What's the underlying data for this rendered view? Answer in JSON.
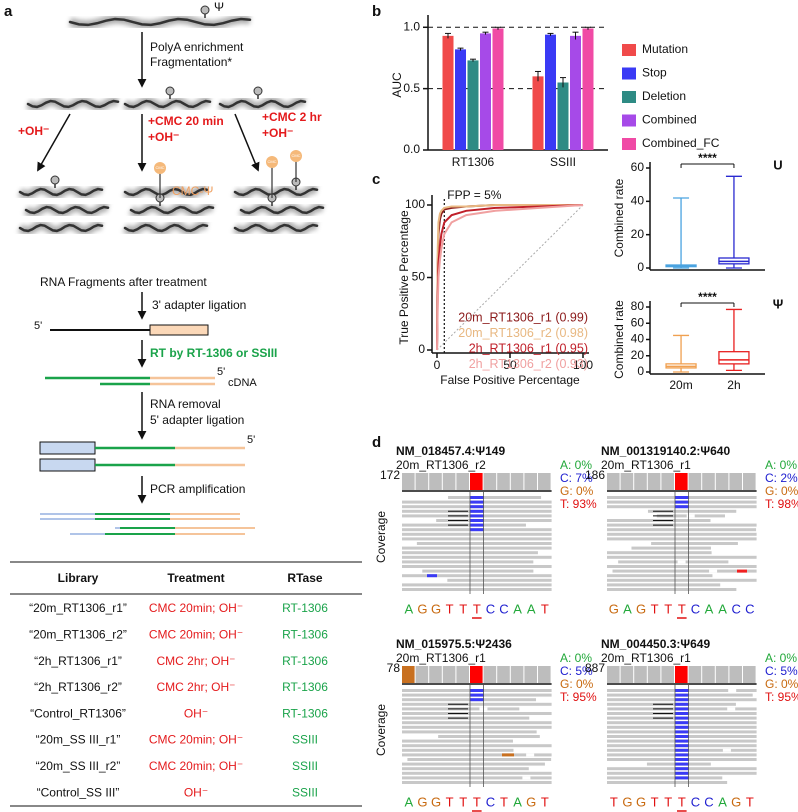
{
  "diagram": {
    "panel_label": "a",
    "psi": "Ψ",
    "step1": "PolyA enrichment",
    "step2": "Fragmentation*",
    "treatments": [
      [
        "+OH⁻"
      ],
      [
        "+CMC 20 min",
        "+OH⁻"
      ],
      [
        "+CMC 2 hr",
        "+OH⁻"
      ]
    ],
    "cmc": "CMC",
    "cmc_psi": "CMC-Ψ",
    "fragments_label": "RNA Fragments after treatment",
    "step3": "3' adapter ligation",
    "five_prime": "5'",
    "step4": "RT by RT-1306 or SSIII",
    "cdna": "cDNA",
    "step5": "RNA removal",
    "step6": "5' adapter ligation",
    "step7": "PCR amplification"
  },
  "table": {
    "header": [
      "Library",
      "Treatment",
      "RTase"
    ],
    "rows": [
      [
        "“20m_RT1306_r1”",
        "CMC 20min; OH⁻",
        "RT-1306"
      ],
      [
        "“20m_RT1306_r2”",
        "CMC 20min; OH⁻",
        "RT-1306"
      ],
      [
        "“2h_RT1306_r1”",
        "CMC 2hr; OH⁻",
        "RT-1306"
      ],
      [
        "“2h_RT1306_r2”",
        "CMC 2hr; OH⁻",
        "RT-1306"
      ],
      [
        "“Control_RT1306”",
        "OH⁻",
        "RT-1306"
      ],
      [
        "“20m_SS III_r1”",
        "CMC 20min; OH⁻",
        "SSIII"
      ],
      [
        "“20m_SS III_r2”",
        "CMC 20min; OH⁻",
        "SSIII"
      ],
      [
        "“Control_SS III”",
        "OH⁻",
        "SSIII"
      ]
    ]
  },
  "chart_data": [
    {
      "type": "bar",
      "panel_label": "b",
      "ylabel": "AUC",
      "categories": [
        "RT1306",
        "SSIII"
      ],
      "ylim": [
        0,
        1.1
      ],
      "yticks": [
        {
          "value": 0,
          "label": "0.0"
        },
        {
          "value": 0.5,
          "label": "0.5"
        },
        {
          "value": 1,
          "label": "1.0"
        }
      ],
      "reference_lines": [
        0.5,
        1
      ],
      "series": [
        {
          "name": "Mutation",
          "color": "#f04a4a",
          "values": [
            0.93,
            0.6
          ],
          "errors": [
            0.02,
            0.04
          ]
        },
        {
          "name": "Stop",
          "color": "#3a3af5",
          "values": [
            0.82,
            0.94
          ],
          "errors": [
            0.01,
            0.01
          ]
        },
        {
          "name": "Deletion",
          "color": "#2e8b84",
          "values": [
            0.73,
            0.55
          ],
          "errors": [
            0.01,
            0.04
          ]
        },
        {
          "name": "Combined",
          "color": "#a64ae8",
          "values": [
            0.95,
            0.93
          ],
          "errors": [
            0.01,
            0.03
          ]
        },
        {
          "name": "Combined_FC",
          "color": "#f04aa5",
          "values": [
            0.99,
            0.99
          ],
          "errors": [
            0.01,
            0.01
          ]
        }
      ]
    },
    {
      "type": "line",
      "panel_label": "c",
      "xlabel": "False Positive Percentage",
      "ylabel": "True Positive Percentage",
      "xlim": [
        0,
        100
      ],
      "ylim": [
        0,
        100
      ],
      "xticks": [
        0,
        50,
        100
      ],
      "yticks": [
        0,
        50,
        100
      ],
      "annotation": "FPP = 5%",
      "annotation_x": 5,
      "series": [
        {
          "name": "20m_RT1306_r1 (0.99)",
          "color": "#8b1a1a",
          "x": [
            0,
            0.5,
            1,
            2,
            3,
            5,
            10,
            20,
            40,
            70,
            100
          ],
          "values": [
            0,
            60,
            80,
            90,
            94,
            97,
            98,
            99,
            100,
            100,
            100
          ]
        },
        {
          "name": "20m_RT1306_r2 (0.98)",
          "color": "#e8b882",
          "x": [
            0,
            0.5,
            1,
            2,
            3,
            5,
            10,
            20,
            40,
            70,
            100
          ],
          "values": [
            0,
            70,
            88,
            94,
            96,
            98,
            99,
            99,
            100,
            100,
            100
          ]
        },
        {
          "name": "2h_RT1306_r1 (0.95)",
          "color": "#c0202a",
          "x": [
            0,
            0.5,
            1,
            2,
            3,
            5,
            10,
            20,
            40,
            70,
            100
          ],
          "values": [
            0,
            40,
            60,
            72,
            80,
            88,
            93,
            96,
            98,
            99,
            100
          ]
        },
        {
          "name": "2h_RT1306_r2 (0.93)",
          "color": "#f0a0a0",
          "x": [
            0,
            0.5,
            1,
            2,
            3,
            5,
            10,
            20,
            40,
            70,
            100
          ],
          "values": [
            0,
            30,
            50,
            62,
            70,
            80,
            88,
            93,
            96,
            98,
            100
          ]
        }
      ]
    },
    {
      "type": "box",
      "title": "U",
      "ylabel": "Combined rate",
      "annotation": "****",
      "ylim": [
        0,
        60
      ],
      "yticks": [
        0,
        20,
        40,
        60
      ],
      "categories": [
        null,
        null
      ],
      "boxes": [
        {
          "color": "#4aa3e0",
          "min": 0,
          "q1": 0.8,
          "median": 1.2,
          "q3": 1.8,
          "max": 42
        },
        {
          "color": "#2a2ad0",
          "min": 0,
          "q1": 2.5,
          "median": 4,
          "q3": 6,
          "max": 55
        }
      ]
    },
    {
      "type": "box",
      "title": "Ψ",
      "ylabel": "Combined rate",
      "annotation": "****",
      "ylim": [
        0,
        80
      ],
      "yticks": [
        0,
        20,
        40,
        60,
        80
      ],
      "categories": [
        "20m",
        "2h"
      ],
      "boxes": [
        {
          "color": "#f0a050",
          "min": 0,
          "q1": 5,
          "median": 7,
          "q3": 10,
          "max": 45
        },
        {
          "color": "#e82020",
          "min": 2,
          "q1": 10,
          "median": 15,
          "q3": 25,
          "max": 77
        }
      ]
    }
  ],
  "igv": {
    "panel_label": "d",
    "coverage_label": "Coverage",
    "base_colors": {
      "A": "#22a83a",
      "C": "#2020d0",
      "G": "#c86a10",
      "T": "#e01010"
    },
    "panels": [
      {
        "title": "NM_018457.4:Ψ149",
        "sample": "20m_RT1306_r2",
        "max": "172",
        "bases": [
          "A: 0%",
          "C: 7%",
          "G: 0%",
          "T: 93%"
        ],
        "sequence": [
          "A",
          "G",
          "G",
          "T",
          "T",
          "T",
          "C",
          "C",
          "A",
          "A",
          "T"
        ]
      },
      {
        "title": "NM_001319140.2:Ψ640",
        "sample": "20m_RT1306_r1",
        "max": "186",
        "bases": [
          "A: 0%",
          "C: 2%",
          "G: 0%",
          "T: 98%"
        ],
        "sequence": [
          "G",
          "A",
          "G",
          "T",
          "T",
          "T",
          "C",
          "A",
          "A",
          "C",
          "C"
        ]
      },
      {
        "title": "NM_015975.5:Ψ2436",
        "sample": "20m_RT1306_r1",
        "max": "78",
        "bases": [
          "A: 0%",
          "C: 5%",
          "G: 0%",
          "T: 95%"
        ],
        "sequence": [
          "A",
          "G",
          "G",
          "T",
          "T",
          "T",
          "C",
          "T",
          "A",
          "G",
          "T"
        ]
      },
      {
        "title": "NM_004450.3:Ψ649",
        "sample": "20m_RT1306_r1",
        "max": "887",
        "bases": [
          "A: 0%",
          "C: 5%",
          "G: 0%",
          "T: 95%"
        ],
        "sequence": [
          "T",
          "G",
          "G",
          "T",
          "T",
          "T",
          "C",
          "C",
          "A",
          "G",
          "T"
        ]
      }
    ]
  }
}
